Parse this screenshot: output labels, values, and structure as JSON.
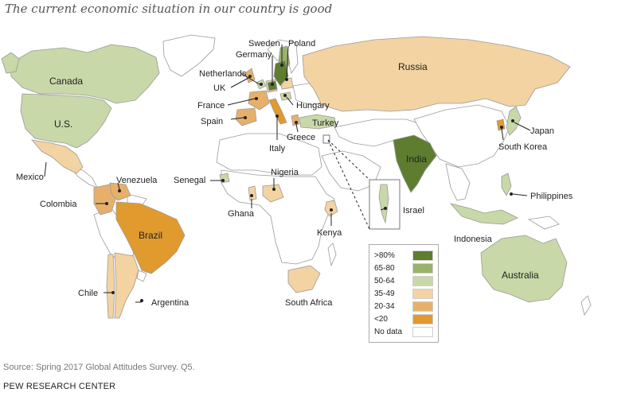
{
  "title": "The current economic situation in our country is good",
  "source": "Source: Spring 2017 Global Attitudes Survey. Q5.",
  "organization": "PEW RESEARCH CENTER",
  "colors": {
    "gt80": "#5e7d2f",
    "65_80": "#9ab26a",
    "50_64": "#c8d8a8",
    "35_49": "#f3d3a2",
    "20_34": "#e7b06a",
    "lt20": "#e09a2e",
    "nodata": "#ffffff",
    "border": "#aaaaaa"
  },
  "legend": {
    "items": [
      {
        "label": ">80%",
        "color": "#5e7d2f"
      },
      {
        "label": "65-80",
        "color": "#9ab26a"
      },
      {
        "label": "50-64",
        "color": "#c8d8a8"
      },
      {
        "label": "35-49",
        "color": "#f3d3a2"
      },
      {
        "label": "20-34",
        "color": "#e7b06a"
      },
      {
        "label": "<20",
        "color": "#e09a2e"
      },
      {
        "label": "No data",
        "color": "#ffffff"
      }
    ]
  },
  "countries": {
    "canada": "Canada",
    "us": "U.S.",
    "mexico": "Mexico",
    "venezuela": "Venezuela",
    "colombia": "Colombia",
    "brazil": "Brazil",
    "chile": "Chile",
    "argentina": "Argentina",
    "sweden": "Sweden",
    "poland": "Poland",
    "germany": "Germany",
    "netherlands": "Netherlands",
    "uk": "UK",
    "france": "France",
    "spain": "Spain",
    "hungary": "Hungary",
    "turkey": "Turkey",
    "greece": "Greece",
    "italy": "Italy",
    "russia": "Russia",
    "senegal": "Senegal",
    "nigeria": "Nigeria",
    "ghana": "Ghana",
    "kenya": "Kenya",
    "south_africa": "South Africa",
    "israel": "Israel",
    "india": "India",
    "japan": "Japan",
    "south_korea": "South Korea",
    "philippines": "Philippines",
    "indonesia": "Indonesia",
    "australia": "Australia"
  }
}
